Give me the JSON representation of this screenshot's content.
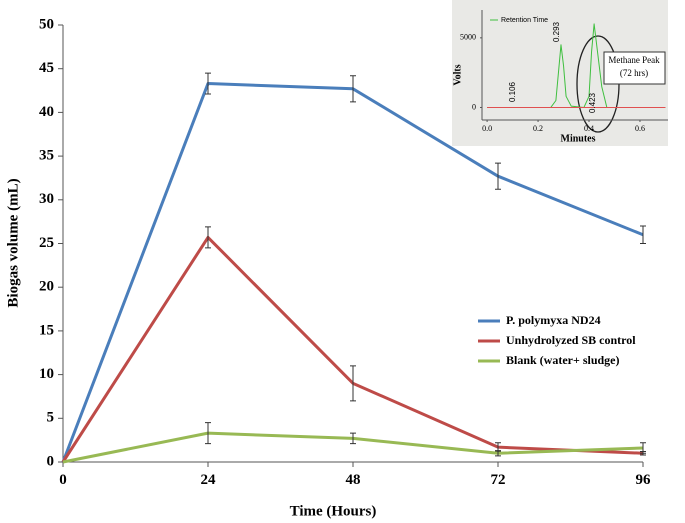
{
  "chart_data": [
    {
      "type": "line",
      "x_label": "Time (Hours)",
      "y_label": "Biogas volume (mL)",
      "x": [
        0,
        24,
        48,
        72,
        96
      ],
      "xlim": [
        0,
        96
      ],
      "xticks": [
        0,
        24,
        48,
        72,
        96
      ],
      "ylim": [
        0,
        50
      ],
      "yticks": [
        0,
        5,
        10,
        15,
        20,
        25,
        30,
        35,
        40,
        45,
        50
      ],
      "grid": false,
      "legend": "right",
      "series": [
        {
          "name": "P. polymyxa ND24",
          "color": "#4a7ebb",
          "values": [
            0,
            43.3,
            42.7,
            32.7,
            26.0
          ],
          "errors": [
            null,
            1.2,
            1.5,
            1.5,
            1.0
          ]
        },
        {
          "name": "Unhydrolyzed SB control",
          "color": "#be4b48",
          "values": [
            0,
            25.7,
            9.0,
            1.7,
            1.0
          ],
          "errors": [
            null,
            1.2,
            2.0,
            0.5,
            0.2
          ]
        },
        {
          "name": "Blank (water+ sludge)",
          "color": "#98b954",
          "values": [
            0,
            3.3,
            2.7,
            1.0,
            1.6
          ],
          "errors": [
            null,
            1.2,
            0.6,
            0.3,
            0.6
          ]
        }
      ]
    },
    {
      "type": "line",
      "x_label": "Minutes",
      "y_label": "Volts",
      "xlim": [
        -0.02,
        0.71
      ],
      "xticks": [
        {
          "value": 0,
          "label": "0.0"
        },
        0.2,
        0.4,
        0.6
      ],
      "ylim": [
        -900,
        7000
      ],
      "yticks": [
        0,
        5000
      ],
      "series": [
        {
          "name": "Retention Time",
          "color": "#3fbf3f",
          "x": [
            0.0,
            0.25,
            0.27,
            0.28,
            0.29,
            0.3,
            0.31,
            0.33,
            0.38,
            0.4,
            0.41,
            0.42,
            0.43,
            0.45,
            0.47,
            0.7
          ],
          "values": [
            0,
            0,
            500,
            2500,
            4500,
            3000,
            800,
            100,
            0,
            800,
            4000,
            6000,
            4500,
            1500,
            0,
            0
          ]
        },
        {
          "color": "#e05050",
          "x": [
            0.0,
            0.7
          ],
          "values": [
            0,
            0
          ]
        }
      ],
      "annotations": [
        "0.106",
        "0.293",
        "0.423"
      ],
      "callout": [
        "Methane Peak",
        "(72 hrs)"
      ]
    }
  ]
}
